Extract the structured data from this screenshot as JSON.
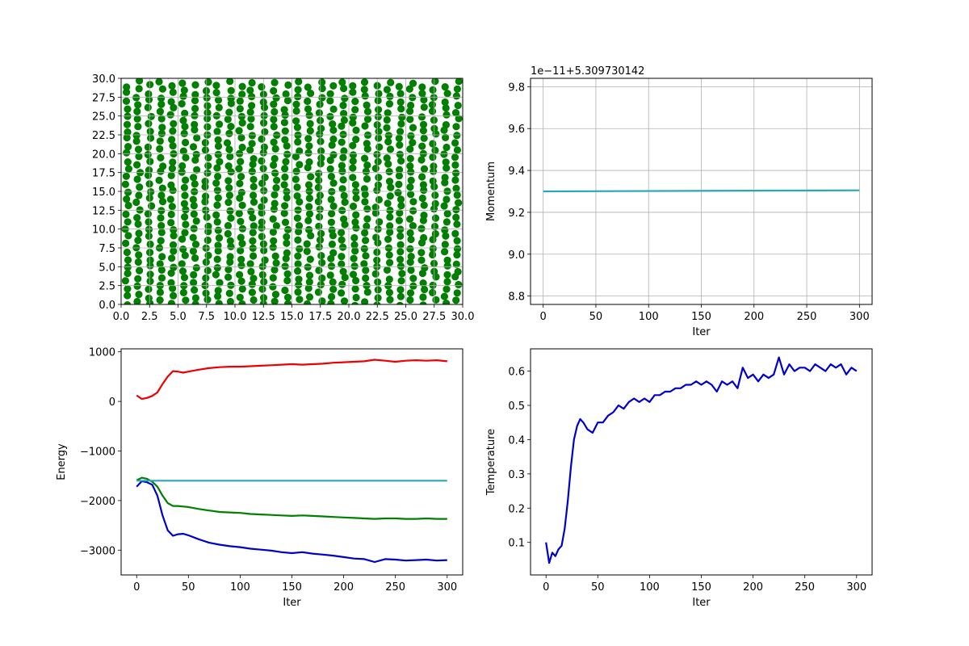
{
  "colors": {
    "points": "#007f00",
    "red": "#ee0000",
    "green": "#008000",
    "blue": "#0000cc",
    "teal": "#2ba6b4",
    "grid": "#b0b0b0"
  },
  "chart_data": [
    {
      "id": "positions",
      "type": "scatter",
      "xlim": [
        0,
        30
      ],
      "ylim": [
        0,
        30
      ],
      "grid": true,
      "xticks": [
        "0.0",
        "2.5",
        "5.0",
        "7.5",
        "10.0",
        "12.5",
        "15.0",
        "17.5",
        "20.0",
        "22.5",
        "25.0",
        "27.5",
        "30.0"
      ],
      "yticks": [
        "0.0",
        "2.5",
        "5.0",
        "7.5",
        "10.0",
        "12.5",
        "15.0",
        "17.5",
        "20.0",
        "22.5",
        "25.0",
        "27.5",
        "30.0"
      ],
      "lattice": {
        "cols": 30,
        "rows": 30,
        "spacing_x": 1.0,
        "spacing_y": 1.0
      },
      "xlabel": "",
      "ylabel": ""
    },
    {
      "id": "momentum",
      "type": "line",
      "xlim": [
        -12,
        312
      ],
      "ylim": [
        8.76,
        9.84
      ],
      "grid": true,
      "offset_text": "1e−11+5.309730142",
      "xticks": [
        0,
        50,
        100,
        150,
        200,
        250,
        300
      ],
      "yticks": [
        "8.8",
        "9.0",
        "9.2",
        "9.4",
        "9.6",
        "9.8"
      ],
      "xlabel": "Iter",
      "ylabel": "Momentum",
      "series": [
        {
          "color": "#2ba6b4",
          "x": [
            0,
            300
          ],
          "y": [
            9.3,
            9.305
          ]
        }
      ]
    },
    {
      "id": "energy",
      "type": "line",
      "xlim": [
        -15,
        315
      ],
      "ylim": [
        -3500,
        1060
      ],
      "grid": false,
      "xticks": [
        0,
        50,
        100,
        150,
        200,
        250,
        300
      ],
      "yticks": [
        "1000",
        "0",
        "−1000",
        "−2000",
        "−3000"
      ],
      "ytick_values": [
        1000,
        0,
        -1000,
        -2000,
        -3000
      ],
      "xlabel": "Iter",
      "ylabel": "Energy",
      "series": [
        {
          "color": "#ee0000",
          "x": [
            0,
            5,
            10,
            15,
            20,
            25,
            30,
            35,
            40,
            45,
            50,
            60,
            70,
            80,
            90,
            100,
            110,
            120,
            130,
            140,
            150,
            160,
            170,
            180,
            190,
            200,
            210,
            220,
            230,
            240,
            250,
            260,
            270,
            280,
            290,
            300
          ],
          "y": [
            120,
            50,
            70,
            110,
            180,
            350,
            500,
            610,
            600,
            580,
            600,
            640,
            670,
            690,
            700,
            700,
            710,
            720,
            730,
            740,
            750,
            740,
            750,
            760,
            780,
            790,
            800,
            810,
            840,
            820,
            800,
            820,
            830,
            820,
            830,
            810
          ]
        },
        {
          "color": "#008000",
          "x": [
            0,
            5,
            10,
            15,
            20,
            25,
            30,
            35,
            40,
            45,
            50,
            60,
            70,
            80,
            90,
            100,
            110,
            120,
            130,
            140,
            150,
            160,
            170,
            180,
            190,
            200,
            210,
            220,
            230,
            240,
            250,
            260,
            270,
            280,
            290,
            300
          ],
          "y": [
            -1590,
            -1540,
            -1560,
            -1620,
            -1720,
            -1900,
            -2050,
            -2110,
            -2110,
            -2120,
            -2130,
            -2170,
            -2200,
            -2230,
            -2240,
            -2250,
            -2270,
            -2280,
            -2290,
            -2300,
            -2310,
            -2300,
            -2310,
            -2320,
            -2330,
            -2340,
            -2350,
            -2360,
            -2370,
            -2360,
            -2360,
            -2370,
            -2370,
            -2360,
            -2370,
            -2370
          ]
        },
        {
          "color": "#0000cc",
          "x": [
            0,
            5,
            10,
            15,
            20,
            25,
            30,
            35,
            40,
            45,
            50,
            60,
            70,
            80,
            90,
            100,
            110,
            120,
            130,
            140,
            150,
            160,
            170,
            180,
            190,
            200,
            210,
            220,
            230,
            240,
            250,
            260,
            270,
            280,
            290,
            300
          ],
          "y": [
            -1720,
            -1610,
            -1630,
            -1680,
            -1900,
            -2300,
            -2600,
            -2710,
            -2680,
            -2670,
            -2700,
            -2780,
            -2850,
            -2890,
            -2920,
            -2940,
            -2970,
            -2990,
            -3010,
            -3040,
            -3060,
            -3040,
            -3070,
            -3090,
            -3110,
            -3140,
            -3170,
            -3180,
            -3240,
            -3180,
            -3190,
            -3210,
            -3200,
            -3190,
            -3210,
            -3200
          ]
        },
        {
          "color": "#2ba6b4",
          "x": [
            0,
            300
          ],
          "y": [
            -1600,
            -1600
          ]
        }
      ]
    },
    {
      "id": "temperature",
      "type": "line",
      "xlim": [
        -15,
        315
      ],
      "ylim": [
        0.005,
        0.665
      ],
      "grid": false,
      "xticks": [
        0,
        50,
        100,
        150,
        200,
        250,
        300
      ],
      "yticks": [
        "0.1",
        "0.2",
        "0.3",
        "0.4",
        "0.5",
        "0.6"
      ],
      "ytick_values": [
        0.1,
        0.2,
        0.3,
        0.4,
        0.5,
        0.6
      ],
      "xlabel": "Iter",
      "ylabel": "Temperature",
      "series": [
        {
          "color": "#0000cc",
          "x": [
            0,
            3,
            6,
            9,
            12,
            15,
            18,
            21,
            24,
            27,
            30,
            33,
            36,
            40,
            45,
            50,
            55,
            60,
            65,
            70,
            75,
            80,
            85,
            90,
            95,
            100,
            105,
            110,
            115,
            120,
            125,
            130,
            135,
            140,
            145,
            150,
            155,
            160,
            165,
            170,
            175,
            180,
            185,
            190,
            195,
            200,
            205,
            210,
            215,
            220,
            225,
            230,
            235,
            240,
            245,
            250,
            255,
            260,
            265,
            270,
            275,
            280,
            285,
            290,
            295,
            300
          ],
          "y": [
            0.1,
            0.04,
            0.07,
            0.06,
            0.08,
            0.09,
            0.14,
            0.22,
            0.32,
            0.4,
            0.44,
            0.46,
            0.45,
            0.43,
            0.42,
            0.45,
            0.45,
            0.47,
            0.48,
            0.5,
            0.49,
            0.51,
            0.52,
            0.51,
            0.52,
            0.51,
            0.53,
            0.53,
            0.54,
            0.54,
            0.55,
            0.55,
            0.56,
            0.56,
            0.57,
            0.56,
            0.57,
            0.56,
            0.54,
            0.57,
            0.56,
            0.57,
            0.55,
            0.61,
            0.58,
            0.59,
            0.57,
            0.59,
            0.58,
            0.59,
            0.64,
            0.59,
            0.62,
            0.6,
            0.61,
            0.61,
            0.6,
            0.62,
            0.61,
            0.6,
            0.62,
            0.61,
            0.62,
            0.59,
            0.61,
            0.6
          ]
        }
      ]
    }
  ]
}
